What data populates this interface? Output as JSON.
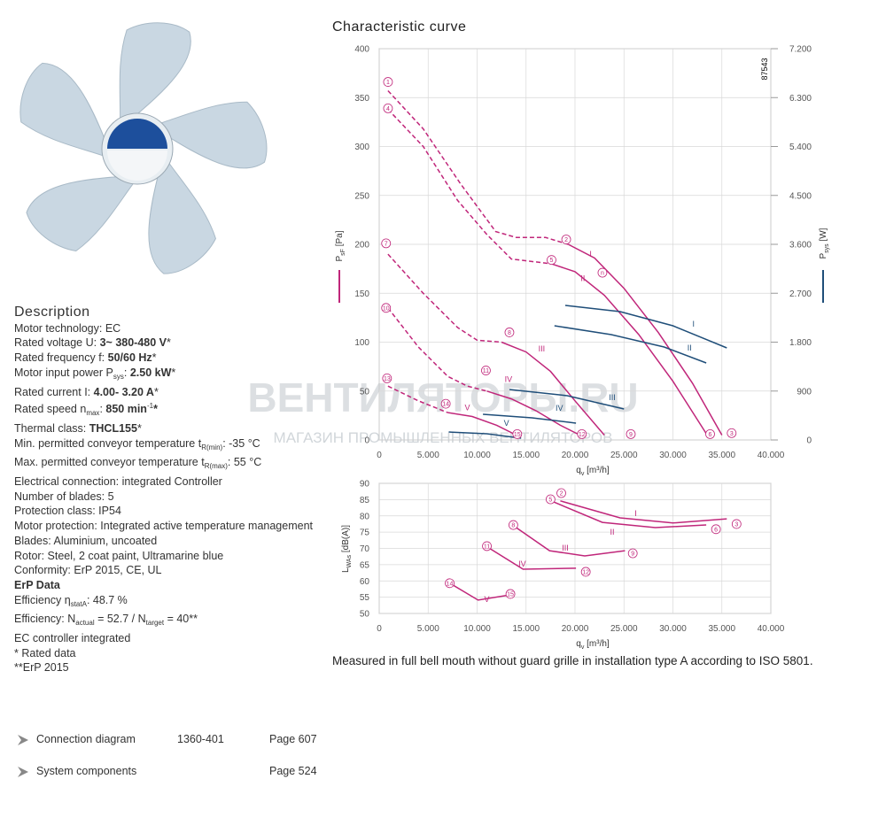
{
  "description": {
    "title": "Description",
    "lines": [
      [
        {
          "text": "Motor technology: EC"
        }
      ],
      [
        {
          "text": "Rated voltage U: "
        },
        {
          "text": "3~ 380-480 V",
          "style": "bold"
        },
        {
          "text": "*"
        }
      ],
      [
        {
          "text": "Rated frequency f: "
        },
        {
          "text": "50/60 Hz",
          "style": "bold"
        },
        {
          "text": "*"
        }
      ],
      [
        {
          "text": "Motor input power P"
        },
        {
          "text": "sys",
          "style": "sub"
        },
        {
          "text": ": "
        },
        {
          "text": "2.50 kW",
          "style": "bold"
        },
        {
          "text": "*"
        }
      ],
      [
        {
          "text": "Rated current I: "
        },
        {
          "text": "4.00- 3.20 A",
          "style": "bold"
        },
        {
          "text": "*"
        }
      ],
      [
        {
          "text": "Rated speed n"
        },
        {
          "text": "max",
          "style": "sub"
        },
        {
          "text": ": "
        },
        {
          "text": "850 min",
          "style": "bold"
        },
        {
          "text": "-1",
          "style": "sup"
        },
        {
          "text": "*",
          "style": "bold"
        }
      ],
      [
        {
          "text": "Thermal class: "
        },
        {
          "text": "THCL155",
          "style": "bold"
        },
        {
          "text": "*"
        }
      ],
      [
        {
          "text": "Min. permitted conveyor temperature t"
        },
        {
          "text": "R(min)",
          "style": "sub"
        },
        {
          "text": ": -35  °C"
        }
      ],
      [
        {
          "text": "Max. permitted conveyor temperature t"
        },
        {
          "text": "R(max)",
          "style": "sub"
        },
        {
          "text": ": 55  °C"
        }
      ],
      [
        {
          "text": "Electrical connection: integrated Controller"
        }
      ],
      [
        {
          "text": "Number of blades: 5"
        }
      ],
      [
        {
          "text": "Protection class: IP54"
        }
      ],
      [
        {
          "text": "Motor protection: Integrated active temperature management"
        }
      ],
      [
        {
          "text": "Blades: Aluminium, uncoated"
        }
      ],
      [
        {
          "text": "Rotor: Steel, 2 coat paint, Ultramarine blue"
        }
      ],
      [
        {
          "text": "Conformity: ErP 2015, CE, UL"
        }
      ],
      [
        {
          "text": "ErP Data",
          "style": "bold"
        }
      ],
      [
        {
          "text": "Efficiency η"
        },
        {
          "text": "statA",
          "style": "sub"
        },
        {
          "text": ": 48.7 %"
        }
      ],
      [
        {
          "text": "Efficiency: N"
        },
        {
          "text": "actual",
          "style": "sub"
        },
        {
          "text": " = 52.7 / N"
        },
        {
          "text": "target",
          "style": "sub"
        },
        {
          "text": " = 40**"
        }
      ],
      [
        {
          "text": "EC controller integrated"
        }
      ],
      [
        {
          "text": "* Rated data"
        }
      ],
      [
        {
          "text": "**ErP 2015"
        }
      ]
    ]
  },
  "links": [
    {
      "label": "Connection diagram",
      "code": "1360-401",
      "page": "Page 607"
    },
    {
      "label": "System components",
      "page": "Page 524"
    }
  ],
  "watermark": {
    "title": "ВЕНТИЛЯТОРЫ.RU",
    "subtitle": "МАГАЗИН ПРОМЫШЛЕННЫХ ВЕНТИЛЯТОРОВ"
  },
  "caption": "Measured in full bell mouth without guard grille in installation type A according to ISO 5801.",
  "chart_data": [
    {
      "type": "line",
      "title": "Characteristic curve",
      "id_label": "87543",
      "x_label": {
        "main": "q",
        "sub": "v",
        "unit": " [m³/h]"
      },
      "y_label": {
        "main": "P",
        "sub": "sF",
        "unit": " [Pa]"
      },
      "y_color": "#c0267a",
      "y2_label": {
        "main": "P",
        "sub": "sys",
        "unit": " [W]"
      },
      "y2_color": "#1f4e79",
      "xlim": [
        0,
        40000
      ],
      "xticks": [
        0,
        {
          "value": 5000,
          "label": "5.000"
        },
        {
          "value": 10000,
          "label": "10.000"
        },
        {
          "value": 15000,
          "label": "15.000"
        },
        {
          "value": 20000,
          "label": "20.000"
        },
        {
          "value": 25000,
          "label": "25.000"
        },
        {
          "value": 30000,
          "label": "30.000"
        },
        {
          "value": 35000,
          "label": "35.000"
        },
        {
          "value": 40000,
          "label": "40.000"
        }
      ],
      "ylim": [
        0,
        400
      ],
      "yticks": [
        0,
        50,
        100,
        150,
        200,
        250,
        300,
        350,
        400
      ],
      "y2lim": [
        0,
        7200
      ],
      "y2ticks": [
        0,
        900,
        {
          "value": 1800,
          "label": "1.800"
        },
        {
          "value": 2700,
          "label": "2.700"
        },
        {
          "value": 3600,
          "label": "3.600"
        },
        {
          "value": 4500,
          "label": "4.500"
        },
        {
          "value": 5400,
          "label": "5.400"
        },
        {
          "value": 6300,
          "label": "6.300"
        },
        {
          "value": 7200,
          "label": "7.200"
        }
      ],
      "grid": true,
      "series": [
        {
          "color": "#c0267a",
          "dashed": {
            "x": [
              900,
              4500,
              8300,
              11900,
              14000,
              17000,
              19300
            ],
            "values": [
              357,
              318,
              262,
              213,
              207,
              207,
              200
            ]
          },
          "x": [
            19300,
            22000,
            25000,
            28500,
            32000,
            35000
          ],
          "values": [
            200,
            186,
            155,
            110,
            58,
            5
          ]
        },
        {
          "color": "#c0267a",
          "dashed": {
            "x": [
              900,
              4500,
              8000,
              11000,
              13500,
              16000,
              17600
            ],
            "values": [
              338,
              300,
              245,
              210,
              185,
              182,
              180
            ]
          },
          "x": [
            17600,
            20000,
            23000,
            26500,
            30000,
            33500
          ],
          "values": [
            180,
            172,
            148,
            108,
            60,
            5
          ]
        },
        {
          "color": "#c0267a",
          "dashed": {
            "x": [
              900,
              4500,
              8000,
              10000,
              12500
            ],
            "values": [
              190,
              150,
              115,
              102,
              100
            ]
          },
          "x": [
            12500,
            15000,
            17500,
            20000,
            23000
          ],
          "values": [
            100,
            90,
            70,
            40,
            5
          ]
        },
        {
          "color": "#c0267a",
          "dashed": {
            "x": [
              900,
              4000,
              7000,
              9000,
              11000
            ],
            "values": [
              135,
              95,
              65,
              55,
              50
            ]
          },
          "x": [
            11000,
            13500,
            16000,
            18500,
            20500
          ],
          "values": [
            50,
            42,
            30,
            15,
            5
          ]
        },
        {
          "color": "#c0267a",
          "dashed": {
            "x": [
              900,
              4000,
              6500,
              7000
            ],
            "values": [
              55,
              40,
              30,
              28
            ]
          },
          "x": [
            7000,
            9500,
            12000,
            14000
          ],
          "values": [
            28,
            24,
            15,
            5
          ]
        },
        {
          "color": "#1f4e79",
          "axis": "y2",
          "x": [
            19000,
            24600,
            30000,
            35500
          ],
          "values": [
            2476,
            2362,
            2101,
            1694
          ]
        },
        {
          "color": "#1f4e79",
          "axis": "y2",
          "x": [
            17900,
            23700,
            29100,
            33400
          ],
          "values": [
            2101,
            1938,
            1710,
            1417
          ]
        },
        {
          "color": "#1f4e79",
          "axis": "y2",
          "x": [
            13300,
            19200,
            25000
          ],
          "values": [
            928,
            814,
            570
          ]
        },
        {
          "color": "#1f4e79",
          "axis": "y2",
          "x": [
            10600,
            15600,
            20100
          ],
          "values": [
            472,
            407,
            309
          ]
        },
        {
          "color": "#1f4e79",
          "axis": "y2",
          "x": [
            7100,
            11000,
            14500
          ],
          "values": [
            147,
            114,
            33
          ]
        }
      ],
      "markers": [
        {
          "label": "1",
          "x": 900,
          "y": 366
        },
        {
          "label": "4",
          "x": 900,
          "y": 339
        },
        {
          "label": "2",
          "x": 19100,
          "y": 205
        },
        {
          "label": "5",
          "x": 17600,
          "y": 184
        },
        {
          "label": "7",
          "x": 700,
          "y": 201
        },
        {
          "label": "8",
          "x": 13300,
          "y": 110
        },
        {
          "label": "10",
          "x": 700,
          "y": 135
        },
        {
          "label": "11",
          "x": 10900,
          "y": 71
        },
        {
          "label": "13",
          "x": 800,
          "y": 63
        },
        {
          "label": "14",
          "x": 6800,
          "y": 37
        },
        {
          "label": "15",
          "x": 14100,
          "y": 6
        },
        {
          "label": "12",
          "x": 20700,
          "y": 6
        },
        {
          "label": "9",
          "x": 25700,
          "y": 6
        },
        {
          "label": "6",
          "x": 33800,
          "y": 6
        },
        {
          "label": "3",
          "x": 36000,
          "y": 7
        },
        {
          "label": "n",
          "x": 22800,
          "y": 171
        }
      ],
      "curve_labels": [
        {
          "text": "I",
          "x": 21600,
          "y": 190
        },
        {
          "text": "II",
          "x": 20800,
          "y": 165
        },
        {
          "text": "III",
          "x": 16600,
          "y": 93
        },
        {
          "text": "IV",
          "x": 13200,
          "y": 62
        },
        {
          "text": "V",
          "x": 9000,
          "y": 33
        },
        {
          "text": "I",
          "x": 32100,
          "y": 2134,
          "axis": "y2"
        },
        {
          "text": "II",
          "x": 31700,
          "y": 1694,
          "axis": "y2"
        },
        {
          "text": "III",
          "x": 23800,
          "y": 782,
          "axis": "y2"
        },
        {
          "text": "IV",
          "x": 18400,
          "y": 586,
          "axis": "y2"
        },
        {
          "text": "V",
          "x": 13000,
          "y": 309,
          "axis": "y2"
        }
      ]
    },
    {
      "type": "line",
      "x_label": {
        "main": "q",
        "sub": "v",
        "unit": " [m³/h]"
      },
      "y_label": {
        "main": "L",
        "sub": "WAs",
        "unit": " [dB(A)]"
      },
      "y_color": "#333333",
      "xlim": [
        0,
        40000
      ],
      "xticks": [
        0,
        {
          "value": 5000,
          "label": "5.000"
        },
        {
          "value": 10000,
          "label": "10.000"
        },
        {
          "value": 15000,
          "label": "15.000"
        },
        {
          "value": 20000,
          "label": "20.000"
        },
        {
          "value": 25000,
          "label": "25.000"
        },
        {
          "value": 30000,
          "label": "30.000"
        },
        {
          "value": 35000,
          "label": "35.000"
        },
        {
          "value": 40000,
          "label": "40.000"
        }
      ],
      "ylim": [
        50,
        90
      ],
      "yticks": [
        50,
        55,
        60,
        65,
        70,
        75,
        80,
        85,
        90
      ],
      "grid": true,
      "series": [
        {
          "color": "#c0267a",
          "x": [
            18500,
            24600,
            30000,
            35500
          ],
          "values": [
            84.6,
            79.4,
            77.8,
            79.1
          ]
        },
        {
          "color": "#c0267a",
          "x": [
            17400,
            22800,
            28200,
            33400
          ],
          "values": [
            84.8,
            78,
            76.4,
            77.2
          ]
        },
        {
          "color": "#c0267a",
          "x": [
            13600,
            17400,
            21000,
            25100
          ],
          "values": [
            77.2,
            69.3,
            67.7,
            69.3
          ]
        },
        {
          "color": "#c0267a",
          "x": [
            10900,
            14700,
            20100
          ],
          "values": [
            70.7,
            63.6,
            63.9
          ]
        },
        {
          "color": "#c0267a",
          "x": [
            7100,
            10100,
            13300
          ],
          "values": [
            59.5,
            54.1,
            55.7
          ]
        }
      ],
      "markers": [
        {
          "label": "2",
          "x": 18600,
          "y": 87
        },
        {
          "label": "5",
          "x": 17500,
          "y": 85.1
        },
        {
          "label": "3",
          "x": 36500,
          "y": 77.5
        },
        {
          "label": "6",
          "x": 34400,
          "y": 75.9
        },
        {
          "label": "8",
          "x": 13700,
          "y": 77.2
        },
        {
          "label": "9",
          "x": 25900,
          "y": 68.5
        },
        {
          "label": "11",
          "x": 11000,
          "y": 70.7
        },
        {
          "label": "12",
          "x": 21100,
          "y": 62.8
        },
        {
          "label": "14",
          "x": 7200,
          "y": 59.3
        },
        {
          "label": "15",
          "x": 13400,
          "y": 56
        }
      ],
      "curve_labels": [
        {
          "text": "I",
          "x": 26200,
          "y": 80.7
        },
        {
          "text": "II",
          "x": 23800,
          "y": 75
        },
        {
          "text": "III",
          "x": 19000,
          "y": 70.1
        },
        {
          "text": "IV",
          "x": 14600,
          "y": 65.2
        },
        {
          "text": "V",
          "x": 11000,
          "y": 54.4
        }
      ]
    }
  ]
}
